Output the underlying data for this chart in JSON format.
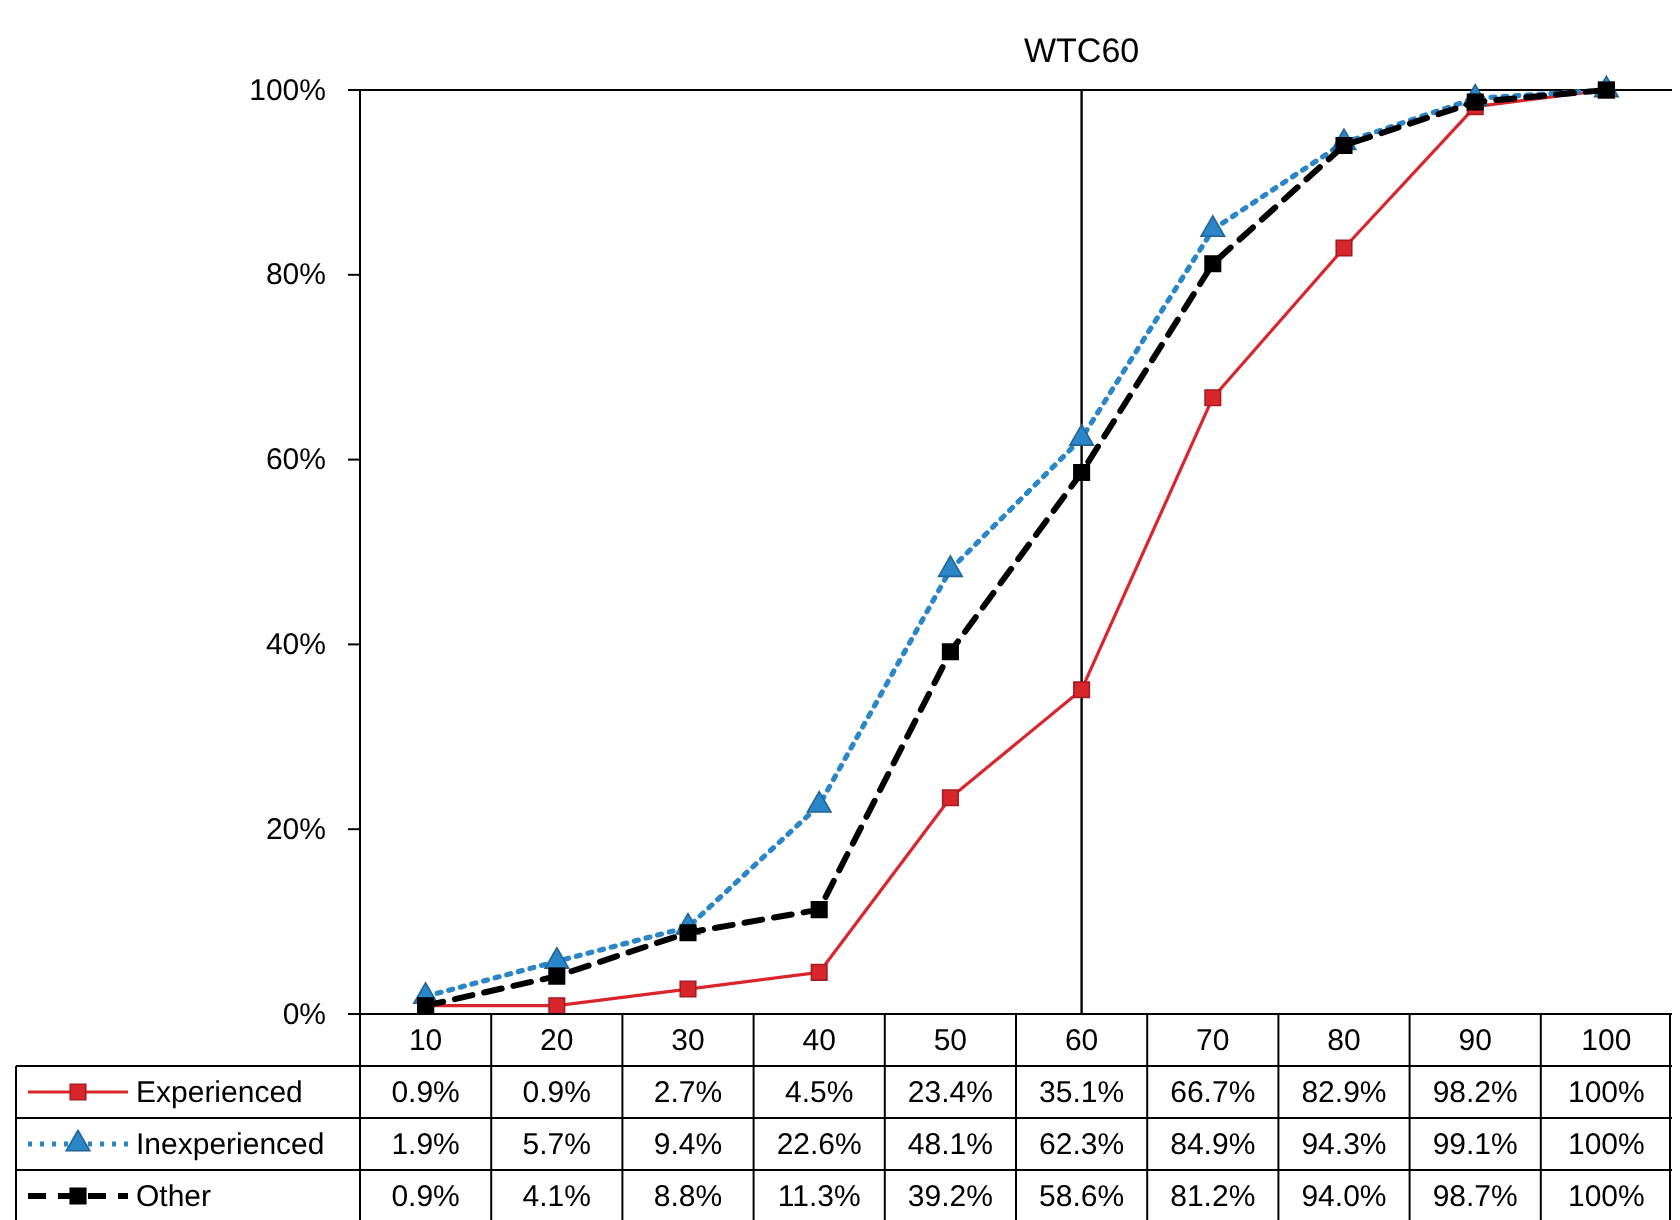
{
  "chart_data": {
    "type": "line",
    "categories": [
      "10",
      "20",
      "30",
      "40",
      "50",
      "60",
      "70",
      "80",
      "90",
      "100"
    ],
    "ylim": [
      0,
      100
    ],
    "yticks": [
      {
        "value": 0,
        "label": "0%"
      },
      {
        "value": 20,
        "label": "20%"
      },
      {
        "value": 40,
        "label": "40%"
      },
      {
        "value": 60,
        "label": "60%"
      },
      {
        "value": 80,
        "label": "80%"
      },
      {
        "value": 100,
        "label": "100%"
      }
    ],
    "grid": false,
    "legend": "bottom left",
    "ref_lines": [
      {
        "axis": "x",
        "value": "60",
        "label": "WTC60",
        "color": "#000000"
      }
    ],
    "series": [
      {
        "name": "Experienced",
        "color": "#d9262c",
        "marker": "square",
        "line_style": "solid",
        "values": [
          0.9,
          0.9,
          2.7,
          4.5,
          23.4,
          35.1,
          66.7,
          82.9,
          98.2,
          100
        ],
        "value_labels": [
          "0.9%",
          "0.9%",
          "2.7%",
          "4.5%",
          "23.4%",
          "35.1%",
          "66.7%",
          "82.9%",
          "98.2%",
          "100%"
        ]
      },
      {
        "name": "Inexperienced",
        "color": "#2b86c8",
        "marker": "triangle",
        "line_style": "dotted",
        "values": [
          1.9,
          5.7,
          9.4,
          22.6,
          48.1,
          62.3,
          84.9,
          94.3,
          99.1,
          100
        ],
        "value_labels": [
          "1.9%",
          "5.7%",
          "9.4%",
          "22.6%",
          "48.1%",
          "62.3%",
          "84.9%",
          "94.3%",
          "99.1%",
          "100%"
        ]
      },
      {
        "name": "Other",
        "color": "#000000",
        "marker": "square",
        "line_style": "dashed",
        "values": [
          0.9,
          4.1,
          8.8,
          11.3,
          39.2,
          58.6,
          81.2,
          94.0,
          98.7,
          100
        ],
        "value_labels": [
          "0.9%",
          "4.1%",
          "8.8%",
          "11.3%",
          "39.2%",
          "58.6%",
          "81.2%",
          "94.0%",
          "98.7%",
          "100%"
        ]
      }
    ]
  }
}
